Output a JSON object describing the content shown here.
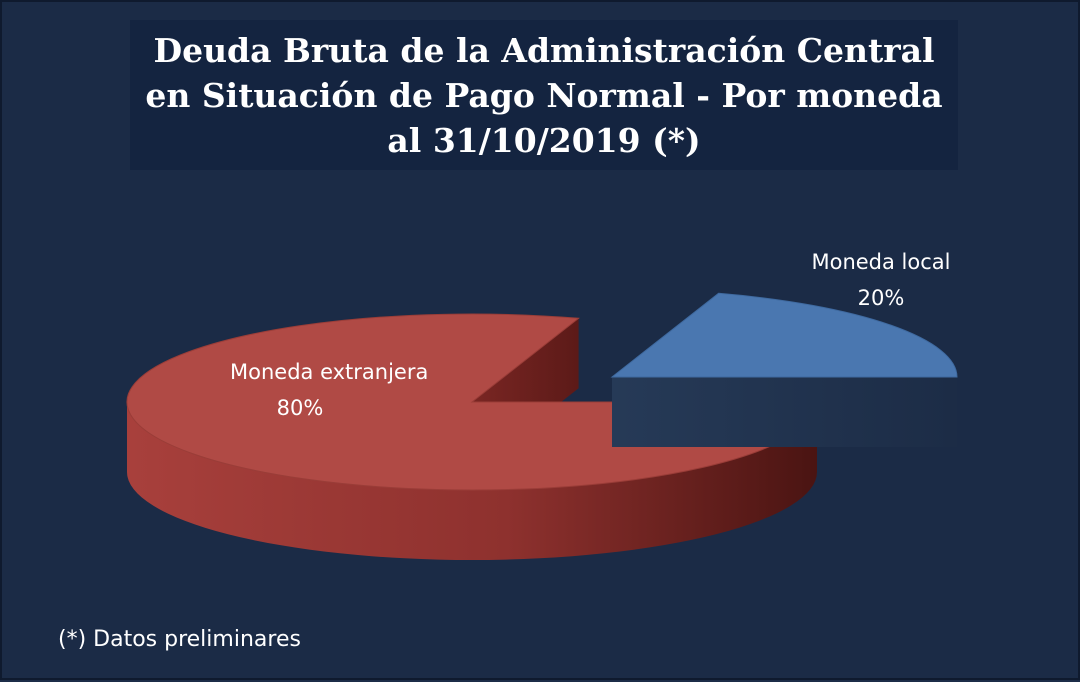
{
  "chart_data": {
    "type": "pie",
    "title": "Deuda Bruta de la Administración Central en Situación de Pago Normal - Por moneda al 31/10/2019 (*)",
    "slices": [
      {
        "label": "Moneda extranjera",
        "value": 80,
        "value_label": "80%",
        "color": "#b04a45"
      },
      {
        "label": "Moneda local",
        "value": 20,
        "value_label": "20%",
        "color": "#4a77b0"
      }
    ],
    "exploded": "Moneda local",
    "style": "3d"
  },
  "footnote": "(*) Datos preliminares"
}
